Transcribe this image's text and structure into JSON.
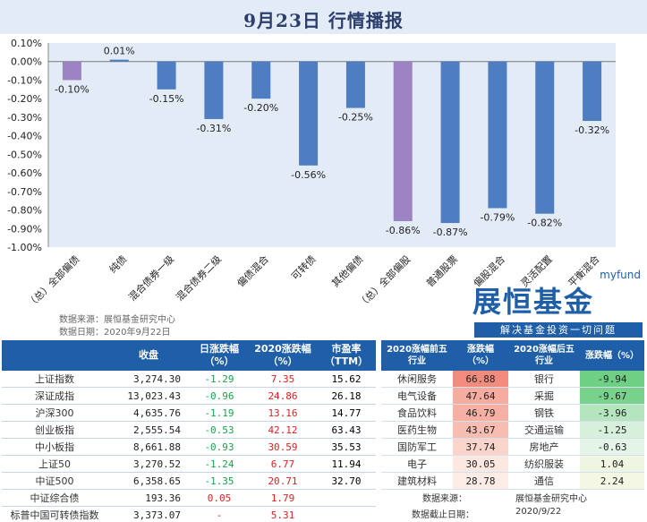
{
  "title": "9月23日  行情播报",
  "chart_data": {
    "type": "bar",
    "categories": [
      "（总）全部偏债",
      "纯债",
      "混合债券一级",
      "混合债券二级",
      "偏债混合",
      "可转债",
      "其他偏债",
      "（总）全部偏股",
      "普通股票",
      "偏股混合",
      "灵活配置",
      "平衡混合"
    ],
    "values": [
      -0.1,
      0.01,
      -0.15,
      -0.31,
      -0.2,
      -0.56,
      -0.25,
      -0.86,
      -0.87,
      -0.79,
      -0.82,
      -0.32
    ],
    "value_labels": [
      "-0.10%",
      "0.01%",
      "-0.15%",
      "-0.31%",
      "-0.20%",
      "-0.56%",
      "-0.25%",
      "-0.86%",
      "-0.87%",
      "-0.79%",
      "-0.82%",
      "-0.32%"
    ],
    "colors": [
      "#9b84c1",
      "#4f7dc2",
      "#4f7dc2",
      "#4f7dc2",
      "#4f7dc2",
      "#4f7dc2",
      "#4f7dc2",
      "#9b84c1",
      "#4f7dc2",
      "#4f7dc2",
      "#4f7dc2",
      "#4f7dc2"
    ],
    "ylim": [
      -1.0,
      0.1
    ],
    "yticks": [
      "0.10%",
      "0.00%",
      "-0.10%",
      "-0.20%",
      "-0.30%",
      "-0.40%",
      "-0.50%",
      "-0.60%",
      "-0.70%",
      "-0.80%",
      "-0.90%",
      "-1.00%"
    ],
    "ytick_values": [
      0.1,
      0.0,
      -0.1,
      -0.2,
      -0.3,
      -0.4,
      -0.5,
      -0.6,
      -0.7,
      -0.8,
      -0.9,
      -1.0
    ],
    "plot_bg": "#e3ebf7",
    "grid": false
  },
  "source": {
    "line1": "数据来源：展恒基金研究中心",
    "line2": "数据日期：2020年9月22日"
  },
  "logo": {
    "en": "myfund",
    "cn": "展恒基金",
    "slogan": "解决基金投资一切问题"
  },
  "left_table": {
    "headers": [
      "",
      "收盘",
      "日涨跌幅\n（%）",
      "2020涨跌幅\n（%）",
      "市盈率\n（TTM）"
    ],
    "rows": [
      {
        "name": "上证指数",
        "close": "3,274.30",
        "dpct": "-1.29",
        "ypct": "7.35",
        "pe": "15.62",
        "dsign": "neg",
        "ysign": "pos"
      },
      {
        "name": "深证成指",
        "close": "13,023.43",
        "dpct": "-0.96",
        "ypct": "24.86",
        "pe": "26.18",
        "dsign": "neg",
        "ysign": "pos"
      },
      {
        "name": "沪深300",
        "close": "4,635.76",
        "dpct": "-1.19",
        "ypct": "13.16",
        "pe": "14.77",
        "dsign": "neg",
        "ysign": "pos"
      },
      {
        "name": "创业板指",
        "close": "2,555.54",
        "dpct": "-0.53",
        "ypct": "42.12",
        "pe": "63.43",
        "dsign": "neg",
        "ysign": "pos"
      },
      {
        "name": "中小板指",
        "close": "8,661.88",
        "dpct": "-0.93",
        "ypct": "30.59",
        "pe": "35.53",
        "dsign": "neg",
        "ysign": "pos"
      },
      {
        "name": "上证50",
        "close": "3,270.52",
        "dpct": "-1.24",
        "ypct": "6.77",
        "pe": "11.94",
        "dsign": "neg",
        "ysign": "pos"
      },
      {
        "name": "中证500",
        "close": "6,358.65",
        "dpct": "-1.35",
        "ypct": "20.71",
        "pe": "32.70",
        "dsign": "neg",
        "ysign": "pos"
      },
      {
        "name": "中证综合债",
        "close": "193.36",
        "dpct": "0.05",
        "ypct": "1.79",
        "pe": "",
        "dsign": "pos",
        "ysign": "pos"
      },
      {
        "name": "标普中国可转债指数",
        "close": "3,373.07",
        "dpct": "-",
        "ypct": "5.31",
        "pe": "",
        "dsign": "pos",
        "ysign": "pos"
      }
    ]
  },
  "right_table": {
    "headers": [
      "2020涨幅前五\n行业",
      "涨跌幅\n（%）",
      "2020涨幅后五\n行业",
      "涨跌幅（%）"
    ],
    "rows": [
      {
        "top": "休闲服务",
        "top_pct": "66.88",
        "top_color": "#f08b7d",
        "bot": "银行",
        "bot_pct": "-9.94",
        "bot_color": "#6fcf84"
      },
      {
        "top": "电气设备",
        "top_pct": "47.64",
        "top_color": "#f6ad9f",
        "bot": "采掘",
        "bot_pct": "-9.67",
        "bot_color": "#78d28c"
      },
      {
        "top": "食品饮料",
        "top_pct": "46.79",
        "top_color": "#f6b0a3",
        "bot": "钢铁",
        "bot_pct": "-3.96",
        "bot_color": "#b5e5bf"
      },
      {
        "top": "医药生物",
        "top_pct": "43.67",
        "top_color": "#f8bdb1",
        "bot": "交通运输",
        "bot_pct": "-1.25",
        "bot_color": "#d7f0dc"
      },
      {
        "top": "国防军工",
        "top_pct": "37.74",
        "top_color": "#fbd5cb",
        "bot": "房地产",
        "bot_pct": "-0.63",
        "bot_color": "#e4f5e7"
      },
      {
        "top": "电子",
        "top_pct": "30.05",
        "top_color": "#fde7e1",
        "bot": "纺织服装",
        "bot_pct": "1.04",
        "bot_color": "#eef6e2"
      },
      {
        "top": "建筑材料",
        "top_pct": "28.78",
        "top_color": "#fdebe6",
        "bot": "通信",
        "bot_pct": "2.24",
        "bot_color": "#f4f7e4"
      }
    ],
    "source_label": "数据来源：",
    "source_value": "展恒基金研究中心",
    "date_label": "数据截止日期：",
    "date_value": "2020/9/22"
  }
}
